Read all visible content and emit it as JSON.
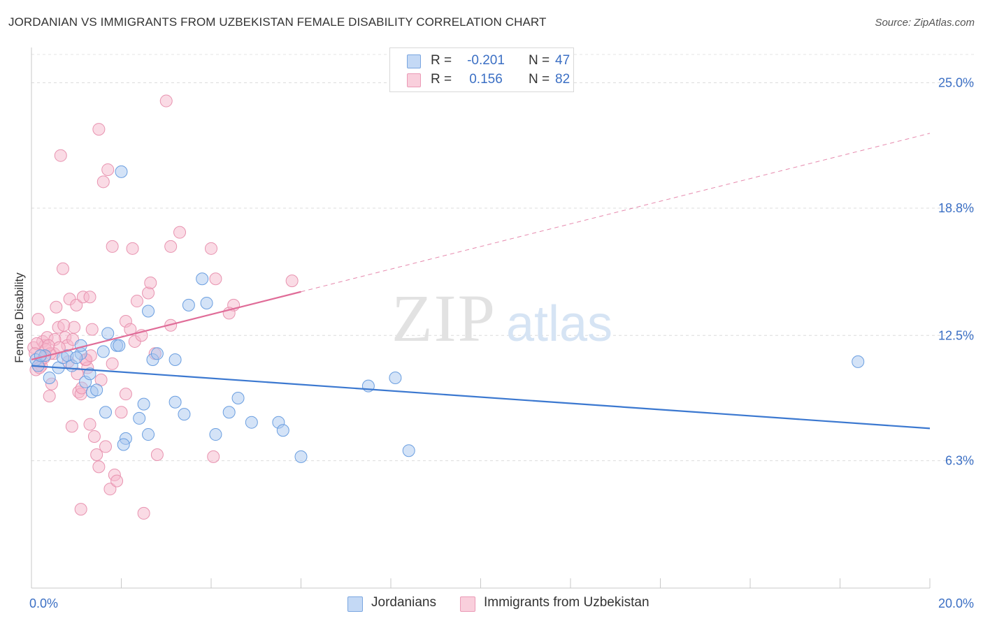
{
  "title": "JORDANIAN VS IMMIGRANTS FROM UZBEKISTAN FEMALE DISABILITY CORRELATION CHART",
  "source": "Source: ZipAtlas.com",
  "watermark": {
    "zip": "ZIP",
    "atlas": "atlas"
  },
  "legend": {
    "rows": [
      {
        "r_label": "R =",
        "r_value": "-0.201",
        "n_label": "N =",
        "n_value": "47",
        "color": "#a9c8f0"
      },
      {
        "r_label": "R =",
        "r_value": "0.156",
        "n_label": "N =",
        "n_value": "82",
        "color": "#f5b8cb"
      }
    ]
  },
  "bottom_legend": [
    {
      "label": "Jordanians",
      "color": "#a9c8f0"
    },
    {
      "label": "Immigrants from Uzbekistan",
      "color": "#f5b8cb"
    }
  ],
  "chart_data": {
    "type": "scatter",
    "title": "JORDANIAN VS IMMIGRANTS FROM UZBEKISTAN FEMALE DISABILITY CORRELATION CHART",
    "xlabel": "",
    "ylabel": "Female Disability",
    "xlim": [
      0,
      20
    ],
    "ylim": [
      0,
      26.4
    ],
    "x_tick_labels": [
      "0.0%",
      "20.0%"
    ],
    "y_ticks": [
      6.3,
      12.5,
      18.8,
      25.0
    ],
    "y_tick_labels": [
      "6.3%",
      "12.5%",
      "18.8%",
      "25.0%"
    ],
    "grid": true,
    "legend_position": "top-center",
    "colors": {
      "jordanians": "#3b78d0",
      "uzbekistan": "#e06c98",
      "tick_label": "#3b6fc4"
    },
    "series": [
      {
        "name": "Jordanians",
        "color": "#a9c8f0",
        "stroke": "#6a9ee0",
        "trend": {
          "x": [
            0,
            20
          ],
          "y": [
            11.0,
            7.9
          ],
          "dashed_from": null
        },
        "points": [
          [
            0.1,
            11.3
          ],
          [
            0.15,
            11.0
          ],
          [
            0.3,
            11.5
          ],
          [
            0.4,
            10.4
          ],
          [
            0.6,
            10.9
          ],
          [
            0.7,
            11.4
          ],
          [
            0.8,
            11.5
          ],
          [
            0.9,
            11.0
          ],
          [
            1.1,
            11.6
          ],
          [
            1.1,
            12.0
          ],
          [
            1.2,
            10.2
          ],
          [
            1.3,
            10.6
          ],
          [
            1.35,
            9.7
          ],
          [
            1.45,
            9.8
          ],
          [
            1.6,
            11.7
          ],
          [
            1.65,
            8.7
          ],
          [
            1.7,
            12.6
          ],
          [
            1.9,
            12.0
          ],
          [
            1.95,
            12.0
          ],
          [
            2.0,
            20.6
          ],
          [
            2.1,
            7.4
          ],
          [
            2.05,
            7.1
          ],
          [
            2.4,
            8.4
          ],
          [
            2.5,
            9.1
          ],
          [
            2.6,
            13.7
          ],
          [
            2.6,
            7.6
          ],
          [
            2.7,
            11.3
          ],
          [
            2.8,
            11.6
          ],
          [
            3.2,
            9.2
          ],
          [
            3.2,
            11.3
          ],
          [
            3.4,
            8.6
          ],
          [
            3.5,
            14.0
          ],
          [
            3.8,
            15.3
          ],
          [
            3.9,
            14.1
          ],
          [
            4.1,
            7.6
          ],
          [
            4.4,
            8.7
          ],
          [
            4.6,
            9.4
          ],
          [
            4.9,
            8.2
          ],
          [
            5.5,
            8.2
          ],
          [
            5.6,
            7.8
          ],
          [
            6.0,
            6.5
          ],
          [
            7.5,
            10.0
          ],
          [
            8.1,
            10.4
          ],
          [
            8.4,
            6.8
          ],
          [
            18.4,
            11.2
          ],
          [
            0.2,
            11.5
          ],
          [
            1.0,
            11.4
          ]
        ]
      },
      {
        "name": "Immigrants from Uzbekistan",
        "color": "#f5b8cb",
        "stroke": "#e893b0",
        "trend": {
          "x": [
            0,
            20
          ],
          "y": [
            11.3,
            22.5
          ],
          "dashed_from": 6.0
        },
        "points": [
          [
            0.05,
            11.9
          ],
          [
            0.1,
            10.8
          ],
          [
            0.15,
            13.3
          ],
          [
            0.2,
            11.2
          ],
          [
            0.25,
            12.2
          ],
          [
            0.3,
            12.0
          ],
          [
            0.35,
            12.4
          ],
          [
            0.4,
            9.5
          ],
          [
            0.45,
            10.1
          ],
          [
            0.5,
            11.6
          ],
          [
            0.55,
            13.9
          ],
          [
            0.6,
            12.9
          ],
          [
            0.65,
            21.4
          ],
          [
            0.7,
            15.8
          ],
          [
            0.75,
            12.4
          ],
          [
            0.8,
            12.0
          ],
          [
            0.85,
            14.3
          ],
          [
            0.9,
            8.0
          ],
          [
            0.95,
            12.9
          ],
          [
            1.0,
            14.0
          ],
          [
            1.05,
            9.7
          ],
          [
            1.1,
            9.6
          ],
          [
            1.1,
            3.9
          ],
          [
            1.15,
            14.4
          ],
          [
            1.2,
            11.3
          ],
          [
            1.25,
            10.9
          ],
          [
            1.3,
            14.4
          ],
          [
            1.3,
            8.1
          ],
          [
            1.35,
            12.8
          ],
          [
            1.4,
            7.5
          ],
          [
            1.45,
            6.6
          ],
          [
            1.5,
            22.7
          ],
          [
            1.5,
            6.0
          ],
          [
            1.55,
            10.3
          ],
          [
            1.6,
            20.1
          ],
          [
            1.65,
            7.0
          ],
          [
            1.7,
            20.7
          ],
          [
            1.75,
            4.9
          ],
          [
            1.8,
            11.1
          ],
          [
            1.8,
            16.9
          ],
          [
            1.85,
            5.6
          ],
          [
            1.9,
            5.3
          ],
          [
            2.0,
            8.7
          ],
          [
            2.1,
            13.2
          ],
          [
            2.1,
            9.6
          ],
          [
            2.2,
            12.8
          ],
          [
            2.25,
            16.8
          ],
          [
            2.3,
            12.2
          ],
          [
            2.35,
            14.2
          ],
          [
            2.45,
            12.5
          ],
          [
            2.5,
            3.7
          ],
          [
            2.6,
            14.6
          ],
          [
            2.65,
            15.1
          ],
          [
            2.75,
            11.6
          ],
          [
            2.8,
            6.6
          ],
          [
            3.0,
            24.1
          ],
          [
            3.1,
            13.0
          ],
          [
            3.1,
            16.9
          ],
          [
            3.3,
            17.6
          ],
          [
            4.0,
            16.8
          ],
          [
            4.1,
            15.3
          ],
          [
            4.05,
            6.5
          ],
          [
            4.5,
            14.0
          ],
          [
            4.4,
            13.6
          ],
          [
            5.8,
            15.2
          ],
          [
            0.12,
            12.1
          ],
          [
            0.22,
            11.0
          ],
          [
            0.32,
            11.8
          ],
          [
            0.42,
            11.6
          ],
          [
            0.52,
            12.3
          ],
          [
            0.62,
            11.9
          ],
          [
            0.72,
            13.0
          ],
          [
            0.82,
            11.2
          ],
          [
            0.92,
            12.3
          ],
          [
            1.02,
            10.6
          ],
          [
            1.12,
            9.9
          ],
          [
            1.22,
            11.3
          ],
          [
            1.32,
            11.5
          ],
          [
            0.08,
            11.6
          ],
          [
            0.18,
            10.9
          ],
          [
            0.28,
            11.4
          ],
          [
            0.38,
            12.0
          ]
        ]
      }
    ]
  }
}
